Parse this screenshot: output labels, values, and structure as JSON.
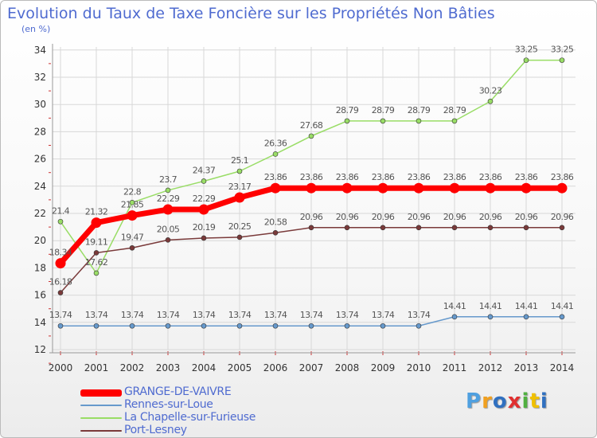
{
  "title": "Evolution du Taux de Taxe Foncière sur les Propriétés Non Bâties",
  "unit": "(en %)",
  "logo": {
    "text": "Proxiti",
    "colors": [
      "#4fa0e0",
      "#f0a020",
      "#3070c0",
      "#e03030",
      "#50b040",
      "#f0c000",
      "#3070c0"
    ]
  },
  "chart_data": {
    "type": "line",
    "title": "Evolution du Taux de Taxe Foncière sur les Propriétés Non Bâties",
    "ylabel": "(en %)",
    "xlabel": "",
    "x": [
      "2000",
      "2001",
      "2002",
      "2003",
      "2004",
      "2005",
      "2006",
      "2007",
      "2008",
      "2009",
      "2010",
      "2011",
      "2012",
      "2013",
      "2014"
    ],
    "ylim": [
      12,
      34
    ],
    "yticks": [
      12,
      14,
      16,
      18,
      20,
      22,
      24,
      26,
      28,
      30,
      32,
      34
    ],
    "grid": true,
    "legend_position": "bottom-left",
    "series": [
      {
        "name": "GRANGE-DE-VAIVRE",
        "color": "#ff0000",
        "values": [
          18.34,
          21.32,
          21.85,
          22.29,
          22.29,
          23.17,
          23.86,
          23.86,
          23.86,
          23.86,
          23.86,
          23.86,
          23.86,
          23.86,
          23.86
        ],
        "labels": [
          "18.34",
          "21.32",
          "21.85",
          "22.29",
          "22.29",
          "23.17",
          "23.86",
          "23.86",
          "23.86",
          "23.86",
          "23.86",
          "23.86",
          "23.86",
          "23.86",
          "23.86"
        ]
      },
      {
        "name": "Rennes-sur-Loue",
        "color": "#6699cc",
        "values": [
          13.74,
          13.74,
          13.74,
          13.74,
          13.74,
          13.74,
          13.74,
          13.74,
          13.74,
          13.74,
          13.74,
          14.41,
          14.41,
          14.41,
          14.41
        ],
        "labels": [
          "13.74",
          "13.74",
          "13.74",
          "13.74",
          "13.74",
          "13.74",
          "13.74",
          "13.74",
          "13.74",
          "13.74",
          "13.74",
          "14.41",
          "14.41",
          "14.41",
          "14.41"
        ]
      },
      {
        "name": "La Chapelle-sur-Furieuse",
        "color": "#99dd66",
        "values": [
          21.4,
          17.62,
          22.8,
          23.7,
          24.37,
          25.1,
          26.36,
          27.68,
          28.79,
          28.79,
          28.79,
          28.79,
          30.23,
          33.25,
          33.25
        ],
        "labels": [
          "21.4",
          "17.62",
          "22.8",
          "23.7",
          "24.37",
          "25.1",
          "26.36",
          "27.68",
          "28.79",
          "28.79",
          "28.79",
          "28.79",
          "30.23",
          "33.25",
          "33.25"
        ]
      },
      {
        "name": "Port-Lesney",
        "color": "#7a3a3a",
        "values": [
          16.18,
          19.11,
          19.47,
          20.05,
          20.19,
          20.25,
          20.58,
          20.96,
          20.96,
          20.96,
          20.96,
          20.96,
          20.96,
          20.96,
          20.96
        ],
        "labels": [
          "16.18",
          "19.11",
          "19.47",
          "20.05",
          "20.19",
          "20.25",
          "20.58",
          "20.96",
          "20.96",
          "20.96",
          "20.96",
          "20.96",
          "20.96",
          "20.96",
          "20.96"
        ]
      }
    ]
  }
}
